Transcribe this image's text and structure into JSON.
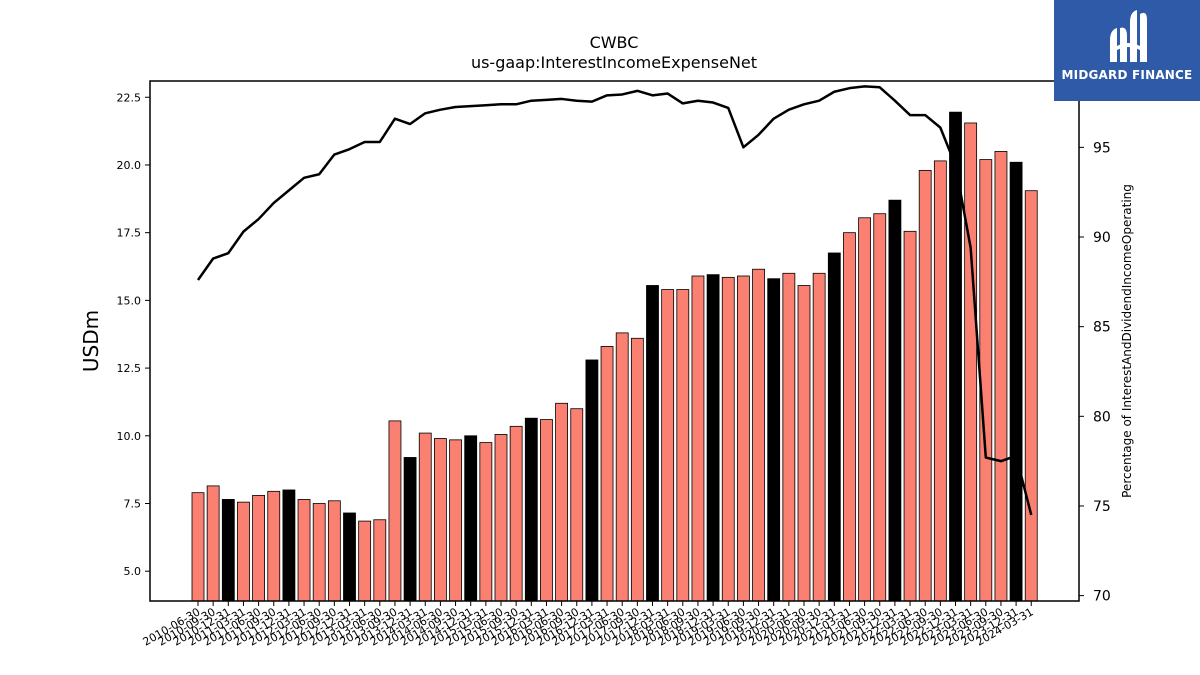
{
  "brand": {
    "name": "MIDGARD FINANCE",
    "background": "#2e5aa8"
  },
  "chart_data": {
    "type": "bar",
    "title": "CWBC",
    "subtitle": "us-gaap:InterestIncomeExpenseNet",
    "ylabel": "USDm",
    "y2label": "Percentage of InterestAndDividendIncomeOperating",
    "ylim": [
      3.9,
      23.1
    ],
    "y2lim": [
      69.7,
      98.7
    ],
    "yticks": [
      "5.0",
      "7.5",
      "10.0",
      "12.5",
      "15.0",
      "17.5",
      "20.0",
      "22.5"
    ],
    "y2ticks": [
      "70",
      "75",
      "80",
      "85",
      "90",
      "95"
    ],
    "categories": [
      "2010-06-30",
      "2010-09-30",
      "2010-12-31",
      "2011-03-31",
      "2011-06-30",
      "2011-09-30",
      "2011-12-31",
      "2012-03-31",
      "2012-06-30",
      "2012-09-30",
      "2012-12-31",
      "2013-03-31",
      "2013-06-30",
      "2013-09-30",
      "2013-12-31",
      "2014-03-31",
      "2014-06-30",
      "2014-09-30",
      "2014-12-31",
      "2015-03-31",
      "2015-06-30",
      "2015-09-30",
      "2015-12-31",
      "2016-03-31",
      "2016-06-30",
      "2016-09-30",
      "2016-12-31",
      "2017-03-31",
      "2017-06-30",
      "2017-09-30",
      "2017-12-31",
      "2018-03-31",
      "2018-06-30",
      "2018-09-30",
      "2018-12-31",
      "2019-03-31",
      "2019-06-30",
      "2019-09-30",
      "2019-12-31",
      "2020-03-31",
      "2020-06-30",
      "2020-09-30",
      "2020-12-31",
      "2021-03-31",
      "2021-06-30",
      "2021-09-30",
      "2021-12-31",
      "2022-03-31",
      "2022-06-30",
      "2022-09-30",
      "2022-12-31",
      "2023-03-31",
      "2023-06-30",
      "2023-09-30",
      "2023-12-31",
      "2024-03-31"
    ],
    "values": [
      7.9,
      8.15,
      7.65,
      7.55,
      7.8,
      7.95,
      8.0,
      7.65,
      7.5,
      7.6,
      7.15,
      6.85,
      6.9,
      10.55,
      9.2,
      10.1,
      9.9,
      9.85,
      10.0,
      9.75,
      10.05,
      10.35,
      10.65,
      10.6,
      11.2,
      11.0,
      12.8,
      13.3,
      13.8,
      13.6,
      15.55,
      15.4,
      15.4,
      15.9,
      15.95,
      15.85,
      15.9,
      16.15,
      15.8,
      16.0,
      15.55,
      16.0,
      16.75,
      17.5,
      18.05,
      18.2,
      18.7,
      17.55,
      19.8,
      20.15,
      21.95,
      21.55,
      20.2,
      20.5,
      20.1,
      19.05
    ],
    "bar_colors": {
      "regular": "#fa8072",
      "year_end": "#000000"
    },
    "series": [
      {
        "values": [
          87.6,
          88.8,
          89.1,
          90.3,
          91.0,
          91.9,
          92.6,
          93.3,
          93.5,
          94.6,
          94.9,
          95.3,
          95.3,
          96.6,
          96.3,
          96.9,
          97.1,
          97.25,
          97.3,
          97.35,
          97.4,
          97.4,
          97.6,
          97.65,
          97.7,
          97.6,
          97.55,
          97.9,
          97.95,
          98.15,
          97.9,
          98.0,
          97.45,
          97.6,
          97.5,
          97.2,
          95.0,
          95.7,
          96.6,
          97.1,
          97.4,
          97.6,
          98.1,
          98.3,
          98.4,
          98.35,
          97.6,
          96.8,
          96.8,
          96.1,
          94.0,
          89.4,
          77.7,
          77.5,
          77.8,
          74.5
        ]
      }
    ],
    "grid": false
  }
}
